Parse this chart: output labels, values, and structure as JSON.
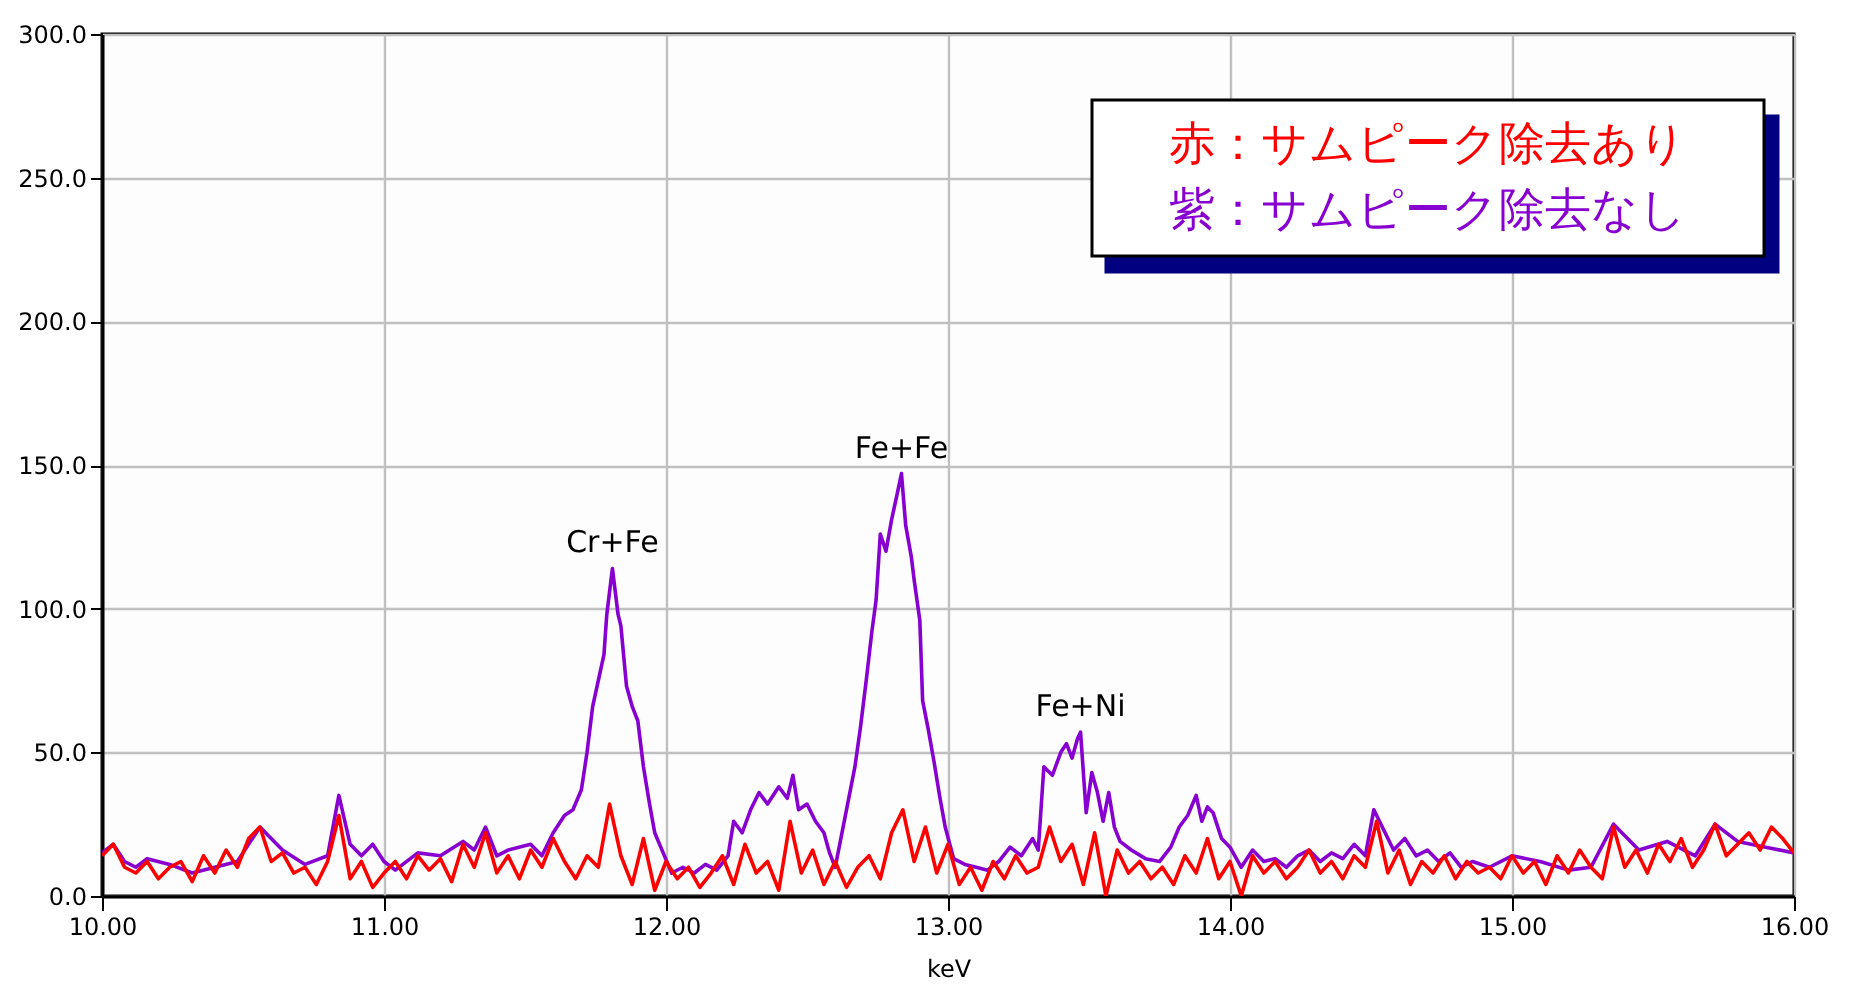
{
  "chart_data": {
    "type": "line",
    "xlabel": "keV",
    "xlim": [
      10,
      16
    ],
    "xticks": [
      {
        "value": 10,
        "label": "10.00"
      },
      {
        "value": 11,
        "label": "11.00"
      },
      {
        "value": 12,
        "label": "12.00"
      },
      {
        "value": 13,
        "label": "13.00"
      },
      {
        "value": 14,
        "label": "14.00"
      },
      {
        "value": 15,
        "label": "15.00"
      },
      {
        "value": 16,
        "label": "16.00"
      }
    ],
    "ylim": [
      0,
      300
    ],
    "yticks": [
      {
        "value": 0,
        "label": "0.0"
      },
      {
        "value": 50,
        "label": "50.0"
      },
      {
        "value": 100,
        "label": "100.0"
      },
      {
        "value": 150,
        "label": "150.0"
      },
      {
        "value": 200,
        "label": "200.0"
      },
      {
        "value": 250,
        "label": "250.0"
      },
      {
        "value": 300,
        "label": "300.0"
      }
    ],
    "grid": true,
    "legend": "top right",
    "annotations": [
      {
        "text": "Cr+Fe",
        "x": 11.81,
        "y": 114
      },
      {
        "text": "Fe+Fe",
        "x": 12.835,
        "y": 147
      },
      {
        "text": "Fe+Ni",
        "x": 13.47,
        "y": 57
      }
    ],
    "series": [
      {
        "name": "赤：サムピーク除去あり",
        "color": "#ff0000",
        "x": [
          10,
          10.04,
          10.08,
          10.12,
          10.16,
          10.2,
          10.24,
          10.28,
          10.32,
          10.36,
          10.4,
          10.44,
          10.48,
          10.52,
          10.56,
          10.6,
          10.64,
          10.68,
          10.72,
          10.76,
          10.8,
          10.84,
          10.88,
          10.92,
          10.96,
          11,
          11.04,
          11.08,
          11.12,
          11.16,
          11.2,
          11.24,
          11.28,
          11.32,
          11.36,
          11.4,
          11.44,
          11.48,
          11.52,
          11.56,
          11.6,
          11.64,
          11.68,
          11.72,
          11.76,
          11.8,
          11.84,
          11.88,
          11.92,
          11.96,
          12,
          12.04,
          12.08,
          12.12,
          12.16,
          12.2,
          12.24,
          12.28,
          12.32,
          12.36,
          12.4,
          12.44,
          12.48,
          12.52,
          12.56,
          12.6,
          12.64,
          12.68,
          12.72,
          12.76,
          12.8,
          12.84,
          12.88,
          12.92,
          12.96,
          13,
          13.04,
          13.08,
          13.12,
          13.16,
          13.2,
          13.24,
          13.28,
          13.32,
          13.36,
          13.4,
          13.44,
          13.48,
          13.52,
          13.56,
          13.6,
          13.64,
          13.68,
          13.72,
          13.76,
          13.8,
          13.84,
          13.88,
          13.92,
          13.96,
          14,
          14.04,
          14.08,
          14.12,
          14.16,
          14.2,
          14.24,
          14.28,
          14.32,
          14.36,
          14.4,
          14.44,
          14.48,
          14.52,
          14.56,
          14.6,
          14.64,
          14.68,
          14.72,
          14.76,
          14.8,
          14.84,
          14.88,
          14.92,
          14.96,
          15,
          15.04,
          15.08,
          15.12,
          15.16,
          15.2,
          15.24,
          15.28,
          15.32,
          15.36,
          15.4,
          15.44,
          15.48,
          15.52,
          15.56,
          15.6,
          15.64,
          15.68,
          15.72,
          15.76,
          15.8,
          15.84,
          15.88,
          15.92,
          15.96,
          16
        ],
        "values": [
          14,
          18,
          10,
          8,
          12,
          6,
          10,
          12,
          5,
          14,
          8,
          16,
          10,
          20,
          24,
          12,
          15,
          8,
          10,
          4,
          12,
          28,
          6,
          12,
          3,
          8,
          12,
          6,
          14,
          9,
          13,
          5,
          18,
          10,
          22,
          8,
          14,
          6,
          16,
          10,
          20,
          12,
          6,
          14,
          10,
          32,
          14,
          4,
          20,
          2,
          12,
          6,
          10,
          3,
          8,
          14,
          4,
          18,
          8,
          12,
          2,
          26,
          8,
          16,
          4,
          12,
          3,
          10,
          14,
          6,
          22,
          30,
          12,
          24,
          8,
          18,
          4,
          10,
          2,
          12,
          6,
          14,
          8,
          10,
          24,
          12,
          18,
          4,
          22,
          0,
          16,
          8,
          12,
          6,
          10,
          4,
          14,
          8,
          20,
          6,
          12,
          0,
          14,
          8,
          12,
          6,
          10,
          16,
          8,
          12,
          6,
          14,
          10,
          26,
          8,
          16,
          4,
          12,
          8,
          14,
          6,
          12,
          8,
          10,
          6,
          14,
          8,
          12,
          4,
          14,
          8,
          16,
          10,
          6,
          24,
          10,
          16,
          8,
          18,
          12,
          20,
          10,
          16,
          25,
          14,
          18,
          22,
          16,
          24,
          20,
          15
        ]
      },
      {
        "name": "紫：サムピーク除去なし",
        "color": "#8800d0",
        "x": [
          10,
          10.04,
          10.08,
          10.12,
          10.16,
          10.24,
          10.32,
          10.4,
          10.48,
          10.56,
          10.64,
          10.72,
          10.8,
          10.84,
          10.88,
          10.92,
          10.96,
          11,
          11.04,
          11.12,
          11.2,
          11.28,
          11.32,
          11.36,
          11.4,
          11.44,
          11.52,
          11.56,
          11.6,
          11.64,
          11.67,
          11.7,
          11.72,
          11.74,
          11.76,
          11.78,
          11.79,
          11.81,
          11.83,
          11.84,
          11.86,
          11.88,
          11.9,
          11.92,
          11.94,
          11.96,
          11.99,
          12.02,
          12.06,
          12.1,
          12.14,
          12.18,
          12.22,
          12.24,
          12.27,
          12.3,
          12.33,
          12.36,
          12.4,
          12.43,
          12.45,
          12.47,
          12.5,
          12.53,
          12.56,
          12.58,
          12.6,
          12.62,
          12.64,
          12.67,
          12.69,
          12.71,
          12.73,
          12.745,
          12.76,
          12.78,
          12.8,
          12.82,
          12.835,
          12.85,
          12.87,
          12.88,
          12.9,
          12.91,
          12.93,
          12.95,
          12.97,
          12.99,
          13.02,
          13.06,
          13.1,
          13.14,
          13.18,
          13.22,
          13.26,
          13.3,
          13.32,
          13.34,
          13.37,
          13.4,
          13.42,
          13.44,
          13.46,
          13.47,
          13.49,
          13.51,
          13.53,
          13.55,
          13.57,
          13.59,
          13.61,
          13.65,
          13.7,
          13.75,
          13.79,
          13.82,
          13.85,
          13.88,
          13.9,
          13.92,
          13.94,
          13.97,
          14,
          14.04,
          14.08,
          14.12,
          14.16,
          14.2,
          14.24,
          14.28,
          14.32,
          14.36,
          14.4,
          14.44,
          14.48,
          14.51,
          14.55,
          14.58,
          14.62,
          14.66,
          14.7,
          14.74,
          14.78,
          14.82,
          14.86,
          14.92,
          15,
          15.1,
          15.2,
          15.28,
          15.36,
          15.45,
          15.55,
          15.65,
          15.72,
          15.8,
          15.9,
          16
        ],
        "values": [
          15,
          18,
          12,
          10,
          13,
          11,
          8,
          10,
          12,
          24,
          16,
          11,
          14,
          35,
          18,
          14,
          18,
          12,
          9,
          15,
          14,
          19,
          16,
          24,
          14,
          16,
          18,
          14,
          22,
          28,
          30,
          37,
          50,
          66,
          75,
          84,
          98,
          114,
          98,
          94,
          73,
          66,
          61,
          45,
          33,
          22,
          15,
          8,
          10,
          8,
          11,
          9,
          14,
          26,
          22,
          30,
          36,
          32,
          38,
          34,
          42,
          30,
          32,
          26,
          22,
          15,
          10,
          20,
          30,
          45,
          59,
          75,
          92,
          103,
          126,
          120,
          131,
          140,
          147,
          129,
          118,
          110,
          96,
          68,
          58,
          47,
          35,
          24,
          13,
          11,
          10,
          9,
          12,
          17,
          14,
          20,
          16,
          45,
          42,
          50,
          53,
          48,
          55,
          57,
          29,
          43,
          36,
          26,
          36,
          24,
          19,
          16,
          13,
          12,
          17,
          24,
          28,
          35,
          26,
          31,
          29,
          20,
          17,
          10,
          16,
          12,
          13,
          10,
          14,
          16,
          12,
          15,
          13,
          18,
          14,
          30,
          22,
          16,
          20,
          14,
          16,
          12,
          15,
          10,
          12,
          10,
          14,
          12,
          9,
          10,
          25,
          16,
          19,
          14,
          25,
          19,
          17,
          15
        ]
      }
    ]
  }
}
